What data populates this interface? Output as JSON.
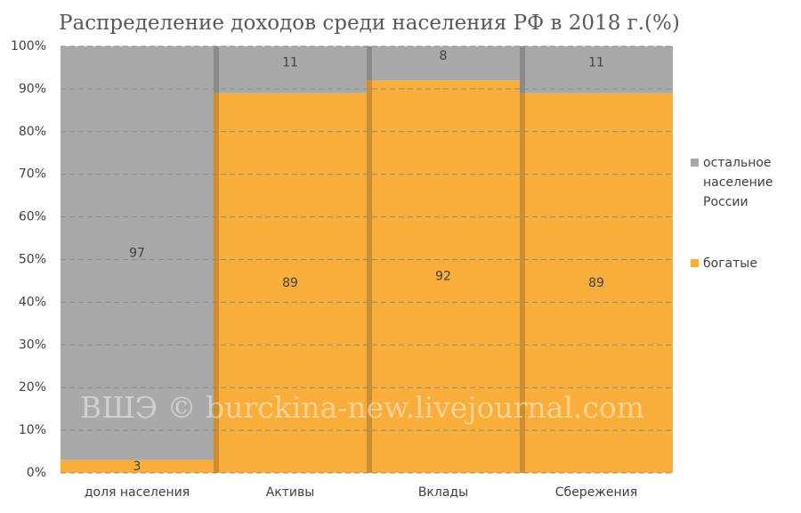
{
  "chart_data": {
    "type": "stacked_bar_100",
    "title": "Распределение доходов среди населения РФ в 2018 г.(%)",
    "categories": [
      "доля населения",
      "Активы",
      "Вклады",
      "Сбережения"
    ],
    "series": [
      {
        "name": "богатые",
        "color": "#f9ae3b",
        "values": [
          3,
          89,
          92,
          89
        ]
      },
      {
        "name": "остальное население России",
        "color": "#a9a9a9",
        "values": [
          97,
          11,
          8,
          11
        ]
      }
    ],
    "ylim": [
      0,
      100
    ],
    "yticks": [
      {
        "value": 0,
        "label": "0%"
      },
      {
        "value": 10,
        "label": "10%"
      },
      {
        "value": 20,
        "label": "20%"
      },
      {
        "value": 30,
        "label": "30%"
      },
      {
        "value": 40,
        "label": "40%"
      },
      {
        "value": 50,
        "label": "50%"
      },
      {
        "value": 60,
        "label": "60%"
      },
      {
        "value": 70,
        "label": "70%"
      },
      {
        "value": 80,
        "label": "80%"
      },
      {
        "value": 90,
        "label": "90%"
      },
      {
        "value": 100,
        "label": "100%"
      }
    ],
    "grid": true,
    "legend": "right",
    "watermark": "ВШЭ © burckina-new.livejournal.com"
  }
}
